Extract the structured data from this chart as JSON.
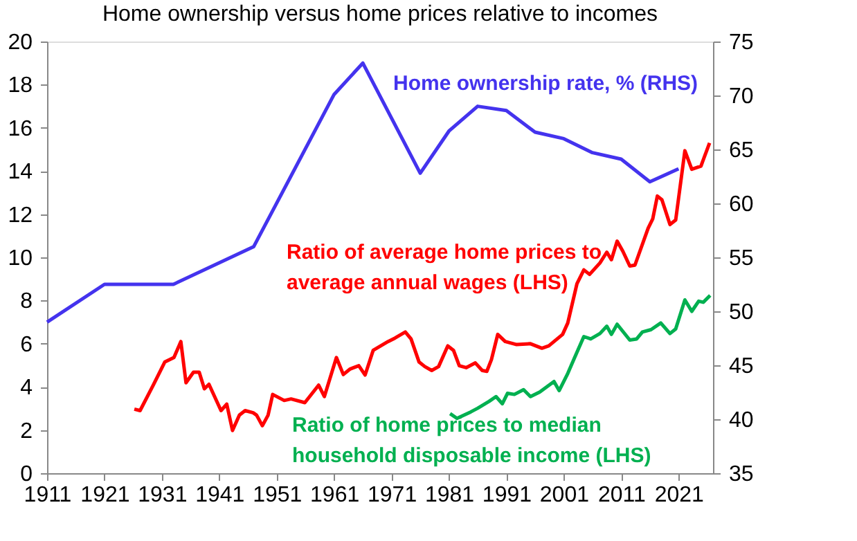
{
  "chart_data": {
    "type": "line",
    "title": "Home ownership versus home prices relative to incomes",
    "xlim": [
      1911,
      2027
    ],
    "xticks": [
      1911,
      1921,
      1931,
      1941,
      1951,
      1961,
      1971,
      1981,
      1991,
      2001,
      2011,
      2021
    ],
    "ylim": [
      0,
      20
    ],
    "yticks": [
      0,
      2,
      4,
      6,
      8,
      10,
      12,
      14,
      16,
      18,
      20
    ],
    "y2lim": [
      35,
      75
    ],
    "y2ticks": [
      35,
      40,
      45,
      50,
      55,
      60,
      65,
      70,
      75
    ],
    "marker": "none",
    "line_style": "solid",
    "series": [
      {
        "name": "Home ownership rate, %  (RHS)",
        "color": "#4433ee",
        "axis": "y2",
        "x": [
          1911,
          1921,
          1933,
          1947,
          1961,
          1966,
          1976,
          1981,
          1986,
          1991,
          1996,
          2001,
          2006,
          2011,
          2016,
          2021
        ],
        "values": [
          49,
          52.5,
          52.5,
          56,
          70.1,
          73,
          62.8,
          66.7,
          69,
          68.6,
          66.6,
          66,
          64.7,
          64.1,
          62,
          63.2
        ]
      },
      {
        "name": "Ratio of average home prices to average annual wages (LHS)",
        "color": "#ff0000",
        "x": [
          1926.2,
          1927.2,
          1929.5,
          1931.5,
          1933.1,
          1934.3,
          1935.2,
          1936.5,
          1937.5,
          1938.4,
          1939.2,
          1941.3,
          1942.3,
          1943.3,
          1944.5,
          1945.5,
          1946.9,
          1947.5,
          1948.5,
          1949.5,
          1950.3,
          1952.3,
          1953.5,
          1955.9,
          1958.3,
          1959.3,
          1961.4,
          1962.6,
          1963.8,
          1965.3,
          1966.4,
          1967.8,
          1970.4,
          1971.6,
          1973.4,
          1974.4,
          1975.8,
          1976.8,
          1978,
          1979.2,
          1980.8,
          1981.8,
          1982.8,
          1984,
          1985.6,
          1986.8,
          1987.6,
          1988.4,
          1989.5,
          1990.8,
          1992.8,
          1995.2,
          1997.2,
          1998.4,
          2000.8,
          2001.7,
          2003.3,
          2004.5,
          2005.5,
          2007.3,
          2008.5,
          2009.3,
          2010.3,
          2011.3,
          2012.5,
          2013.4,
          2015.7,
          2016.5,
          2017.3,
          2018.1,
          2019.5,
          2020.5,
          2022.1,
          2023.3,
          2024.9,
          2026.4
        ],
        "values": [
          2.97,
          2.9,
          4.08,
          5.15,
          5.36,
          6.1,
          4.19,
          4.68,
          4.68,
          3.91,
          4.12,
          2.9,
          3.2,
          1.98,
          2.69,
          2.9,
          2.8,
          2.69,
          2.2,
          2.69,
          3.65,
          3.37,
          3.44,
          3.27,
          4.08,
          3.55,
          5.36,
          4.57,
          4.83,
          4.98,
          4.55,
          5.69,
          6.1,
          6.26,
          6.54,
          6.22,
          5.15,
          4.94,
          4.76,
          4.94,
          5.9,
          5.69,
          4.98,
          4.89,
          5.11,
          4.76,
          4.72,
          5.26,
          6.43,
          6.1,
          5.96,
          6.0,
          5.79,
          5.9,
          6.43,
          6.96,
          8.78,
          9.42,
          9.21,
          9.74,
          10.24,
          9.89,
          10.75,
          10.28,
          9.6,
          9.64,
          11.35,
          11.78,
          12.84,
          12.67,
          11.52,
          11.73,
          14.94,
          14.08,
          14.23,
          15.3
        ]
      },
      {
        "name": "Ratio of home prices to median household disposable income (LHS)",
        "color": "#00b050",
        "x": [
          1981.2,
          1982.4,
          1984.8,
          1986,
          1988,
          1989.2,
          1990.3,
          1991.2,
          1992.4,
          1994,
          1995.2,
          1996.8,
          1999.3,
          2000.2,
          2001.7,
          2002.9,
          2004.5,
          2005.7,
          2007.3,
          2008.5,
          2009.3,
          2010.3,
          2012.5,
          2013.7,
          2014.7,
          2016.2,
          2017.9,
          2019.5,
          2020.5,
          2022.1,
          2023.3,
          2024.5,
          2025.3,
          2026.5
        ],
        "values": [
          2.76,
          2.54,
          2.84,
          3.01,
          3.33,
          3.55,
          3.22,
          3.7,
          3.65,
          3.87,
          3.55,
          3.76,
          4.25,
          3.83,
          4.62,
          5.36,
          6.33,
          6.22,
          6.47,
          6.81,
          6.43,
          6.9,
          6.17,
          6.22,
          6.54,
          6.65,
          6.96,
          6.47,
          6.68,
          8.03,
          7.5,
          7.97,
          7.92,
          8.24
        ]
      }
    ]
  }
}
